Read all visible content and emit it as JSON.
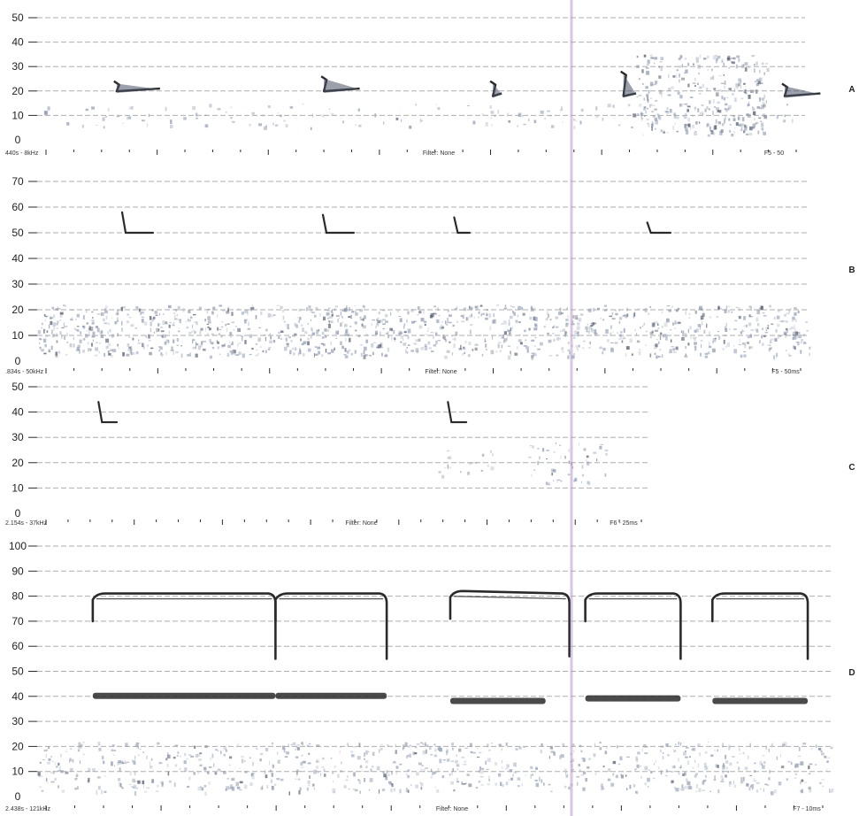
{
  "colors": {
    "line": "#2a2a2a",
    "grid": "#9a9a9a",
    "noise": "#8e9ab0",
    "noise_dark": "#4a5266",
    "cursor": "#b89cc8"
  },
  "chart_data": [
    {
      "type": "scatter",
      "panel_label": "A",
      "ylim": [
        0,
        50
      ],
      "yticks": [
        0,
        10,
        20,
        30,
        40,
        50
      ],
      "xlim": [
        0,
        1
      ],
      "footer_left": "440s - 8kHz",
      "footer_center": "Filter: None",
      "footer_right": "F5 - 50",
      "calls": [
        {
          "x": 0.1,
          "f_start": 24,
          "f_end": 21,
          "dur": 0.06
        },
        {
          "x": 0.37,
          "f_start": 26,
          "f_end": 21,
          "dur": 0.05
        },
        {
          "x": 0.59,
          "f_start": 24,
          "f_end": 19,
          "dur": 0.015
        },
        {
          "x": 0.76,
          "f_start": 28,
          "f_end": 19,
          "dur": 0.02
        },
        {
          "x": 0.97,
          "f_start": 23,
          "f_end": 19,
          "dur": 0.05
        }
      ],
      "noise": [
        {
          "x0": 0.0,
          "x1": 1.0,
          "f0": 5,
          "f1": 15,
          "density": 0.25
        },
        {
          "x0": 0.78,
          "x1": 0.95,
          "f0": 2,
          "f1": 35,
          "density": 0.9
        }
      ]
    },
    {
      "type": "scatter",
      "panel_label": "B",
      "ylim": [
        0,
        70
      ],
      "yticks": [
        0,
        10,
        20,
        30,
        40,
        50,
        60,
        70
      ],
      "xlim": [
        0,
        1
      ],
      "footer_left": ".834s - 50kHz",
      "footer_center": "Filter: None",
      "footer_right": "F5 - 50ms",
      "calls": [
        {
          "x": 0.11,
          "f_start": 58,
          "f_end": 50,
          "dur": 0.04
        },
        {
          "x": 0.37,
          "f_start": 57,
          "f_end": 50,
          "dur": 0.04
        },
        {
          "x": 0.54,
          "f_start": 56,
          "f_end": 50,
          "dur": 0.02
        },
        {
          "x": 0.79,
          "f_start": 54,
          "f_end": 50,
          "dur": 0.03
        }
      ],
      "noise": [
        {
          "x0": 0.0,
          "x1": 1.0,
          "f0": 2,
          "f1": 22,
          "density": 0.95
        }
      ]
    },
    {
      "type": "scatter",
      "panel_label": "C",
      "ylim": [
        0,
        50
      ],
      "yticks": [
        0,
        10,
        20,
        30,
        40,
        50
      ],
      "xlim": [
        0,
        1
      ],
      "footer_left": "2.154s - 37kHz",
      "footer_center": "Filter: None",
      "footer_right": "F6 - 25ms",
      "calls": [
        {
          "x": 0.1,
          "f_start": 44,
          "f_end": 36,
          "dur": 0.03
        },
        {
          "x": 0.67,
          "f_start": 44,
          "f_end": 36,
          "dur": 0.03
        }
      ],
      "noise": [
        {
          "x0": 0.65,
          "x1": 0.75,
          "f0": 15,
          "f1": 25,
          "density": 0.4
        },
        {
          "x0": 0.8,
          "x1": 0.93,
          "f0": 12,
          "f1": 28,
          "density": 0.5
        }
      ]
    },
    {
      "type": "scatter",
      "panel_label": "D",
      "ylim": [
        0,
        100
      ],
      "yticks": [
        0,
        10,
        20,
        30,
        40,
        50,
        60,
        70,
        80,
        90,
        100
      ],
      "xlim": [
        0,
        1
      ],
      "footer_left": "2.438s - 121kHz",
      "footer_center": "Filter: None",
      "footer_right": "F7 - 10ms",
      "calls": [
        {
          "x": 0.07,
          "f_start": 80,
          "f_end": 80,
          "dur": 0.23
        },
        {
          "x": 0.3,
          "f_start": 80,
          "f_end": 80,
          "dur": 0.14
        },
        {
          "x": 0.52,
          "f_start": 81,
          "f_end": 80,
          "dur": 0.15
        },
        {
          "x": 0.69,
          "f_start": 80,
          "f_end": 80,
          "dur": 0.12
        },
        {
          "x": 0.85,
          "f_start": 80,
          "f_end": 80,
          "dur": 0.12
        }
      ],
      "harmonics": [
        {
          "x": 0.07,
          "f": 40,
          "dur": 0.23
        },
        {
          "x": 0.3,
          "f": 40,
          "dur": 0.14
        },
        {
          "x": 0.52,
          "f": 38,
          "dur": 0.12
        },
        {
          "x": 0.69,
          "f": 39,
          "dur": 0.12
        },
        {
          "x": 0.85,
          "f": 38,
          "dur": 0.12
        }
      ],
      "noise": [
        {
          "x0": 0.0,
          "x1": 1.0,
          "f0": 2,
          "f1": 22,
          "density": 0.6
        }
      ]
    }
  ]
}
